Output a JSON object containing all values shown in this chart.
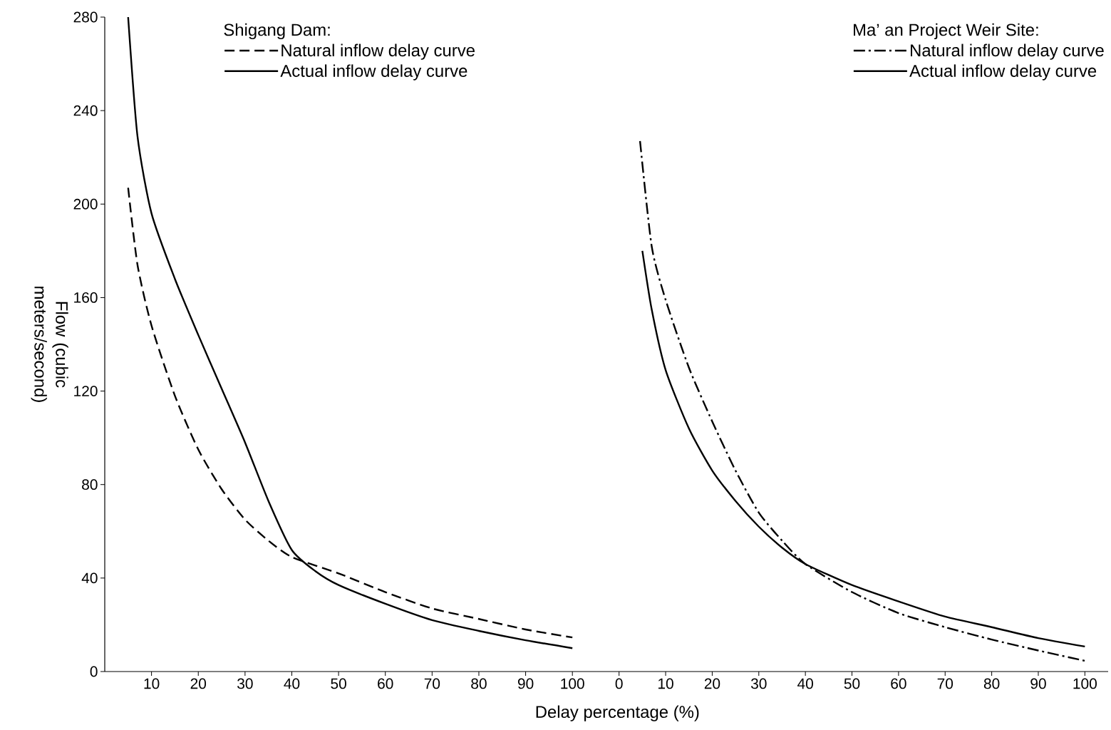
{
  "chart_data": [
    {
      "type": "line",
      "ylabel": "Flow (cubic meters/second)",
      "xlabel": "Delay percentage (%)",
      "legend_title": "Shigang Dam:",
      "legend": "top",
      "xlim": [
        0,
        105
      ],
      "ylim": [
        0,
        280
      ],
      "xticks": [
        10,
        20,
        30,
        40,
        50,
        60,
        70,
        80,
        90,
        100
      ],
      "yticks": [
        0,
        40,
        80,
        120,
        160,
        200,
        240,
        280
      ],
      "series": [
        {
          "name": "Natural inflow delay curve",
          "color": "#000000",
          "line_style": "dashed",
          "x": [
            5,
            7,
            10,
            15,
            20,
            25,
            30,
            35,
            40,
            50,
            60,
            70,
            80,
            90,
            100
          ],
          "values": [
            207,
            174,
            148,
            118,
            95,
            78,
            65,
            56,
            49,
            42,
            34,
            27,
            22.5,
            18,
            14.6
          ]
        },
        {
          "name": "Actual inflow delay curve",
          "color": "#000000",
          "line_style": "solid",
          "x": [
            5,
            7,
            10,
            15,
            20,
            25,
            30,
            35,
            40,
            45,
            50,
            60,
            70,
            80,
            90,
            100
          ],
          "values": [
            280,
            229,
            196,
            168,
            144,
            121,
            98,
            73,
            52,
            43,
            37,
            29,
            22,
            17.4,
            13.4,
            10
          ]
        }
      ]
    },
    {
      "type": "line",
      "legend_title": "Ma’ an Project Weir Site:",
      "legend": "top right",
      "tick_labels": "x",
      "xlim": [
        -5,
        105
      ],
      "ylim": [
        0,
        280
      ],
      "xticks": [
        0,
        10,
        20,
        30,
        40,
        50,
        60,
        70,
        80,
        90,
        100
      ],
      "series": [
        {
          "name": "Natural inflow delay curve",
          "color": "#000000",
          "line_style": "dashdot",
          "x": [
            4.5,
            7,
            10,
            15,
            20,
            25,
            30,
            35,
            40,
            50,
            60,
            70,
            80,
            90,
            100
          ],
          "values": [
            227,
            182,
            159,
            130,
            107,
            86,
            68,
            56,
            46,
            34,
            25,
            19,
            13.7,
            9,
            4.6
          ]
        },
        {
          "name": "Actual inflow delay curve",
          "color": "#000000",
          "line_style": "solid",
          "x": [
            5,
            7,
            10,
            15,
            20,
            25,
            30,
            35,
            40,
            50,
            60,
            70,
            80,
            90,
            100
          ],
          "values": [
            180,
            155,
            129,
            104,
            86,
            73,
            62,
            53,
            46,
            37,
            30,
            23.5,
            19,
            14.3,
            10.7
          ]
        }
      ]
    }
  ]
}
